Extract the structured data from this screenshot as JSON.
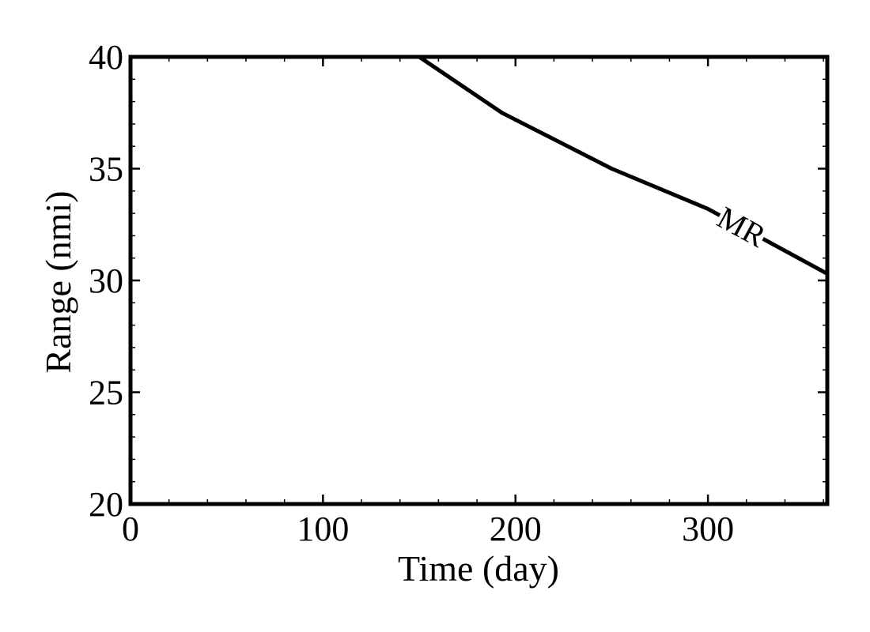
{
  "chart_data": {
    "type": "line",
    "xlabel": "Time (day)",
    "ylabel": "Range (nmi)",
    "xlim": [
      0,
      362
    ],
    "ylim": [
      20,
      40
    ],
    "x_ticks": [
      0,
      100,
      200,
      300
    ],
    "y_ticks": [
      20,
      25,
      30,
      35,
      40
    ],
    "grid": false,
    "series": [
      {
        "name": "MR",
        "color": "#000000",
        "x": [
          0,
          150,
          193,
          250,
          300,
          362
        ],
        "y": [
          40,
          40,
          37.5,
          35,
          33.2,
          30.3
        ]
      }
    ]
  }
}
